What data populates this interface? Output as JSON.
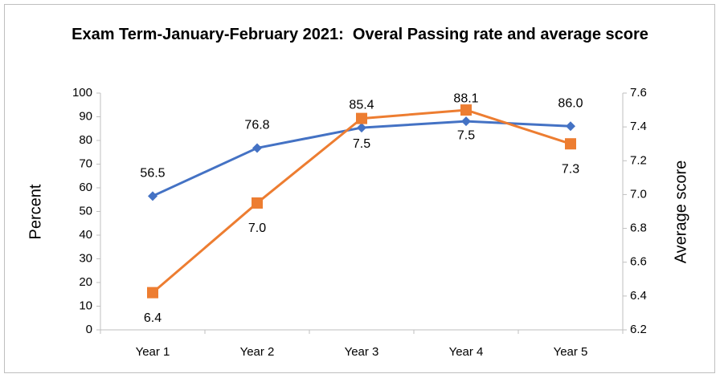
{
  "chart_data": {
    "type": "line",
    "title": "Exam Term-January-February 2021:  Overal Passing rate and average score",
    "y_label": "Percent",
    "y2_label": "Average score",
    "categories": [
      "Year 1",
      "Year 2",
      "Year 3",
      "Year 4",
      "Year 5"
    ],
    "series": [
      {
        "color": "#4472c4",
        "marker": "diamond",
        "values": [
          56.5,
          76.8,
          85.4,
          88.1,
          86.0
        ],
        "value_labels": [
          "56.5",
          "76.8",
          "85.4",
          "88.1",
          "86.0"
        ],
        "label_position": "above"
      },
      {
        "color": "#ed7d31",
        "marker": "square",
        "axis": "y2",
        "values": [
          6.42,
          6.95,
          7.45,
          7.5,
          7.3
        ],
        "value_labels": [
          "6.4",
          "7.0",
          "7.5",
          "7.5",
          "7.3"
        ],
        "label_position": "below"
      }
    ],
    "ylim": [
      0,
      100
    ],
    "yticks": [
      0,
      10,
      20,
      30,
      40,
      50,
      60,
      70,
      80,
      90,
      100
    ],
    "y2lim": [
      6.2,
      7.6
    ],
    "y2ticks": [
      6.2,
      6.4,
      6.6,
      6.8,
      {
        "value": 7,
        "label": "7.0"
      },
      7.2,
      7.4,
      7.6
    ],
    "grid": false
  }
}
